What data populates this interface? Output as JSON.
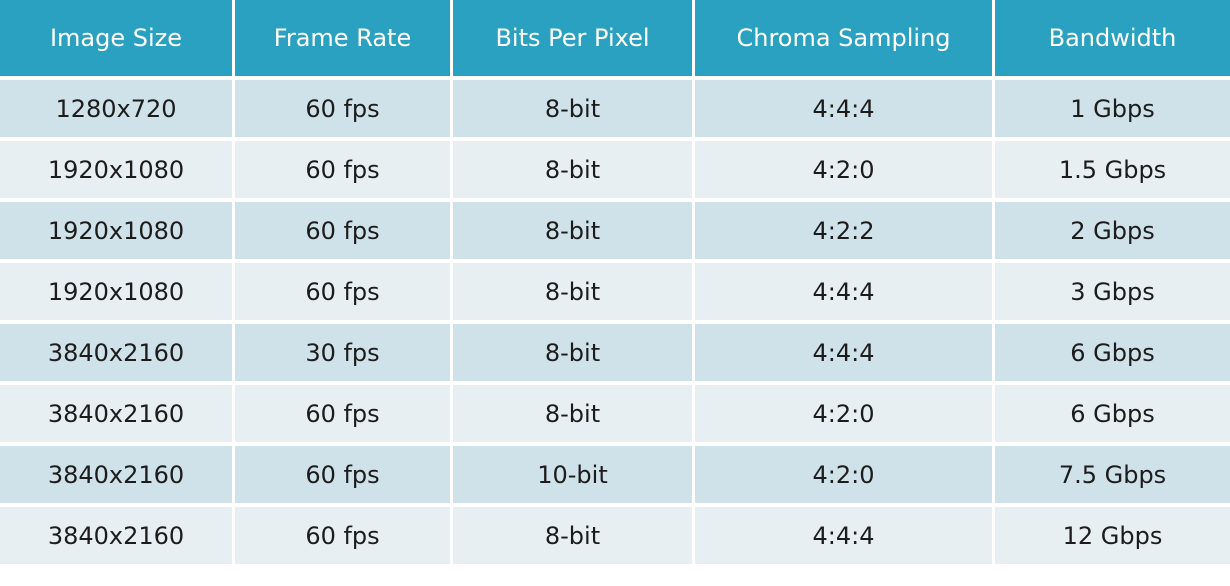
{
  "table": {
    "header": [
      "Image Size",
      "Frame Rate",
      "Bits Per Pixel",
      "Chroma Sampling",
      "Bandwidth"
    ],
    "rows": [
      [
        "1280x720",
        "60 fps",
        "8-bit",
        "4:4:4",
        "1 Gbps"
      ],
      [
        "1920x1080",
        "60 fps",
        "8-bit",
        "4:2:0",
        "1.5 Gbps"
      ],
      [
        "1920x1080",
        "60 fps",
        "8-bit",
        "4:2:2",
        "2 Gbps"
      ],
      [
        "1920x1080",
        "60 fps",
        "8-bit",
        "4:4:4",
        "3 Gbps"
      ],
      [
        "3840x2160",
        "30 fps",
        "8-bit",
        "4:4:4",
        "6 Gbps"
      ],
      [
        "3840x2160",
        "60 fps",
        "8-bit",
        "4:2:0",
        "6 Gbps"
      ],
      [
        "3840x2160",
        "60 fps",
        "10-bit",
        "4:2:0",
        "7.5 Gbps"
      ],
      [
        "3840x2160",
        "60 fps",
        "8-bit",
        "4:4:4",
        "12 Gbps"
      ]
    ]
  }
}
